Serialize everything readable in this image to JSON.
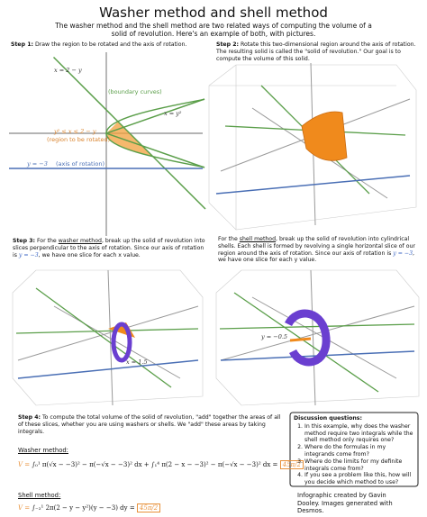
{
  "header": {
    "title": "Washer method and shell method",
    "intro": "The washer method and the shell method are two related ways of computing the volume of a solid of revolution. Here's an example of both, with pictures."
  },
  "steps": [
    {
      "label": "Step 1:",
      "text": "Draw the region to be rotated and the axis of rotation."
    },
    {
      "label": "Step 2:",
      "text": "Rotate this two-dimensional region around the axis of rotation. The resulting solid is called the \"solid of revolution.\" Our goal is to compute the volume of this solid."
    },
    {
      "label": "Step 3:",
      "before": "For the",
      "method": "washer method",
      "middle": ", break up the solid of revolution into slices perpendicular to the axis of rotation. Since our axis of rotation is",
      "axis": "y = −3",
      "after": ", we have one slice for each x value."
    },
    {
      "before": "For the",
      "method": "shell method",
      "middle": ", break up the solid of revolution into cylindrical shells. Each shell is formed by revolving a single horizontal slice of our region around the axis of rotation. Since our axis of rotation is",
      "axis": "y = −3",
      "after": ", we have one slice for each y value."
    },
    {
      "label": "Step 4:",
      "text": "To compute the total volume of the solid of revolution, \"add\" together the areas of all of these slices, whether you are using washers or shells. We \"add\" these areas by taking integrals."
    }
  ],
  "graph_labels": {
    "line": "x = 2 − y",
    "boundary": "(boundary curves)",
    "parabola": "x = y²",
    "region": "y² ≤ x ≤ 2 − y",
    "region_note": "(region to be rotated)",
    "axis": "y = −3",
    "axis_note": "(axis of rotation)",
    "slice_x": "x = 1.5",
    "slice_y": "y = −0.5"
  },
  "methods": {
    "washer": {
      "label": "Washer method:",
      "lhs": "V =",
      "formula": "∫₀¹ π(√x − −3)² − π(−√x − −3)² dx + ∫₁⁴ π(2 − x − −3)² − π(−√x − −3)² dx =",
      "result": "45π/2"
    },
    "shell": {
      "label": "Shell method:",
      "lhs": "V =",
      "formula": "∫₋₂¹ 2π(2 − y − y²)(y − −3) dy =",
      "result": "45π/2"
    }
  },
  "discussion": {
    "title": "Discussion questions:",
    "items": [
      "In this example, why does the washer method require two integrals while the shell method only requires one?",
      "Where do the formulas in my integrands come from?",
      "Where do the limits for my definite integrals come from?",
      "If you see a problem like this, how will you decide which method to use?"
    ]
  },
  "credit": "Infographic created by Gavin Dooley. Images generated with Desmos."
}
